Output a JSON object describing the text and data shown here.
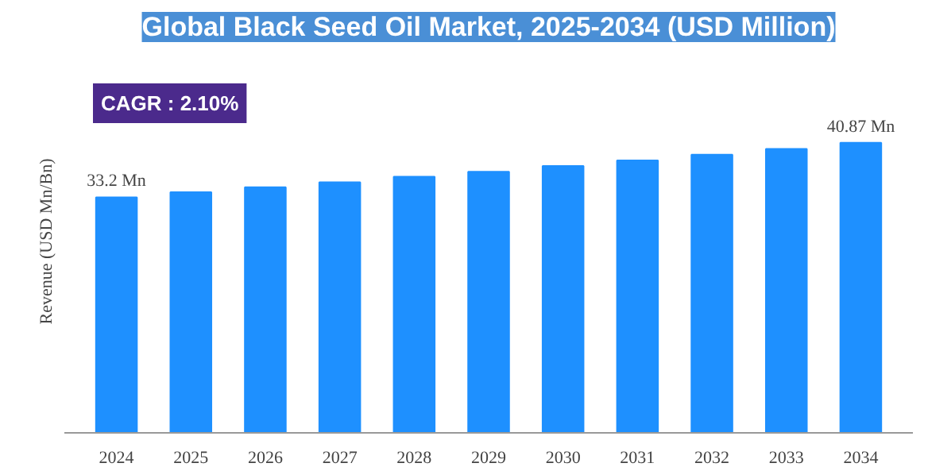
{
  "chart_data": {
    "type": "bar",
    "title": "Global Black Seed Oil Market, 2025-2034 (USD Million)",
    "ylabel": "Revenue (USD Mn/Bn)",
    "annotations": [
      "CAGR : 2.10%"
    ],
    "categories": [
      "2024",
      "2025",
      "2026",
      "2027",
      "2028",
      "2029",
      "2030",
      "2031",
      "2032",
      "2033",
      "2034"
    ],
    "values": [
      33.2,
      33.9,
      34.6,
      35.3,
      36.1,
      36.8,
      37.6,
      38.4,
      39.2,
      40.0,
      40.87
    ],
    "value_labels": [
      "33.2 Mn",
      null,
      null,
      null,
      null,
      null,
      null,
      null,
      null,
      null,
      "40.87 Mn"
    ],
    "color": "#1e90ff",
    "grid": false,
    "tick_labels": "x"
  }
}
